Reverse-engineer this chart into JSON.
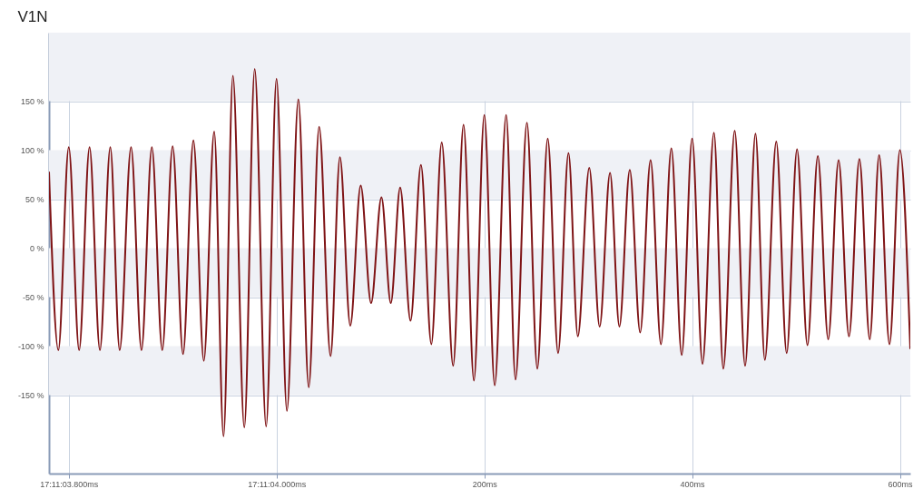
{
  "chart_data": {
    "type": "line",
    "title": "V1N",
    "x": [
      -219,
      -210,
      -200,
      -190,
      -180,
      -170,
      -160,
      -151,
      -140,
      -130,
      -120,
      -110,
      -100,
      -90,
      -80,
      -70,
      -60,
      -51,
      -42,
      -31,
      -21,
      -10,
      0,
      10,
      21,
      31,
      41,
      52,
      61,
      71,
      81,
      91,
      101,
      110,
      119,
      129,
      139,
      149,
      159,
      170,
      180,
      190,
      200,
      210,
      221,
      230,
      241,
      251,
      261,
      271,
      281,
      290,
      301,
      311,
      321,
      330,
      340,
      350,
      360,
      370,
      380,
      390,
      400,
      410,
      421,
      430,
      441,
      451,
      461,
      470,
      481,
      491,
      501,
      511,
      521,
      531,
      541,
      551,
      561,
      571,
      580,
      590,
      600,
      610
    ],
    "series": [
      {
        "color": "#7f1416",
        "values": [
          78,
          -104,
          103,
          -104,
          103,
          -104,
          103,
          -104,
          103,
          -104,
          103,
          -104,
          104,
          -108,
          110,
          -115,
          119,
          -192,
          176,
          -183,
          183,
          -182,
          173,
          -166,
          152,
          -142,
          124,
          -110,
          93,
          -79,
          64,
          -56,
          52,
          -56,
          62,
          -74,
          85,
          -98,
          108,
          -120,
          126,
          -135,
          136,
          -140,
          136,
          -134,
          128,
          -123,
          112,
          -107,
          97,
          -90,
          82,
          -80,
          77,
          -80,
          80,
          -86,
          90,
          -98,
          102,
          -109,
          112,
          -118,
          118,
          -123,
          120,
          -120,
          117,
          -114,
          109,
          -107,
          101,
          -99,
          94,
          -93,
          90,
          -90,
          91,
          -93,
          95,
          -98,
          100,
          -103
        ]
      }
    ],
    "xlim": [
      -219,
      610
    ],
    "xticks": [
      {
        "value": -200,
        "label": "17:11:03.800ms"
      },
      {
        "value": 0,
        "label": "17:11:04.000ms"
      },
      {
        "value": 200,
        "label": "200ms"
      },
      {
        "value": 400,
        "label": "400ms"
      },
      {
        "value": 600,
        "label": "600ms"
      }
    ],
    "ylim": [
      -230,
      220
    ],
    "yticks": [
      {
        "value": 150,
        "label": "150 %"
      },
      {
        "value": 100,
        "label": "100 %"
      },
      {
        "value": 50,
        "label": "50 %"
      },
      {
        "value": 0,
        "label": "0 %"
      },
      {
        "value": -50,
        "label": "-50 %"
      },
      {
        "value": -100,
        "label": "-100 %"
      },
      {
        "value": -150,
        "label": "-150 %"
      }
    ],
    "bands": [
      {
        "axis": "y",
        "from": 150,
        "to": 220,
        "color": "#eff1f6"
      },
      {
        "axis": "y",
        "from": 50,
        "to": 100,
        "color": "#eff1f6"
      },
      {
        "axis": "y",
        "from": -50,
        "to": 0,
        "color": "#eff1f6"
      },
      {
        "axis": "y",
        "from": -150,
        "to": -100,
        "color": "#eff1f6"
      }
    ],
    "grid": true,
    "marker": "none",
    "line_style": "solid"
  }
}
